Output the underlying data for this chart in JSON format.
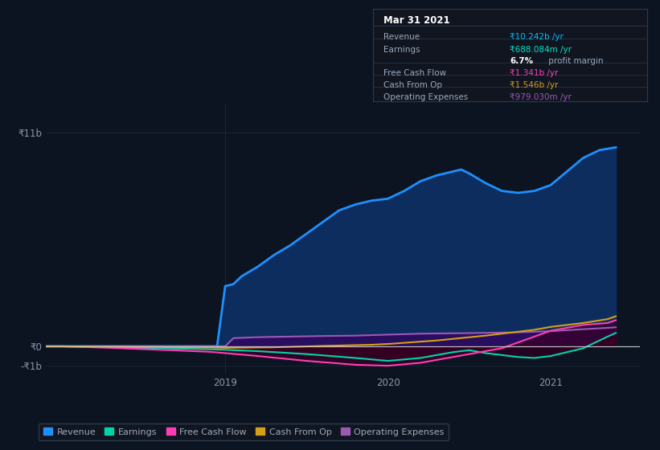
{
  "background_color": "#0d1421",
  "plot_bg_color": "#0d1421",
  "grid_color": "#1a2535",
  "ylim": [
    -1400000000.0,
    12500000000.0
  ],
  "xlim": [
    2017.9,
    2021.55
  ],
  "y_ticks": [
    -1000000000.0,
    0,
    11000000000.0
  ],
  "y_tick_labels": [
    "-₹1b",
    "₹0",
    "₹11b"
  ],
  "x_ticks": [
    2019.0,
    2020.0,
    2021.0
  ],
  "x_tick_labels": [
    "2019",
    "2020",
    "2021"
  ],
  "info_box_title": "Mar 31 2021",
  "info_rows": [
    {
      "label": "Revenue",
      "value": "₹10.242b /yr",
      "vcolor": "#00bfff",
      "separator": true
    },
    {
      "label": "Earnings",
      "value": "₹688.084m /yr",
      "vcolor": "#00e5cc",
      "separator": false
    },
    {
      "label": "",
      "value": "6.7% profit margin",
      "vcolor": "mixed",
      "separator": true
    },
    {
      "label": "Free Cash Flow",
      "value": "₹1.341b /yr",
      "vcolor": "#ff3eb5",
      "separator": true
    },
    {
      "label": "Cash From Op",
      "value": "₹1.546b /yr",
      "vcolor": "#d4a017",
      "separator": true
    },
    {
      "label": "Operating Expenses",
      "value": "₹979.030m /yr",
      "vcolor": "#9b59b6",
      "separator": false
    }
  ],
  "series": {
    "revenue": {
      "color": "#1e90ff",
      "fill_color": "#0d2d5e",
      "label": "Revenue",
      "x": [
        2017.9,
        2018.0,
        2018.1,
        2018.2,
        2018.3,
        2018.4,
        2018.5,
        2018.6,
        2018.7,
        2018.8,
        2018.9,
        2018.95,
        2019.0,
        2019.05,
        2019.1,
        2019.2,
        2019.3,
        2019.4,
        2019.5,
        2019.6,
        2019.7,
        2019.8,
        2019.9,
        2020.0,
        2020.1,
        2020.2,
        2020.3,
        2020.4,
        2020.45,
        2020.5,
        2020.6,
        2020.7,
        2020.8,
        2020.9,
        2021.0,
        2021.1,
        2021.2,
        2021.3,
        2021.4
      ],
      "y": [
        0,
        0,
        0,
        0,
        0,
        0,
        0,
        0,
        0,
        0,
        0,
        0,
        3100000000.0,
        3200000000.0,
        3600000000.0,
        4100000000.0,
        4700000000.0,
        5200000000.0,
        5800000000.0,
        6400000000.0,
        7000000000.0,
        7300000000.0,
        7500000000.0,
        7600000000.0,
        8000000000.0,
        8500000000.0,
        8800000000.0,
        9000000000.0,
        9100000000.0,
        8900000000.0,
        8400000000.0,
        8000000000.0,
        7900000000.0,
        8000000000.0,
        8300000000.0,
        9000000000.0,
        9700000000.0,
        10100000000.0,
        10242000000.0
      ]
    },
    "earnings": {
      "color": "#00d4aa",
      "label": "Earnings",
      "x": [
        2017.9,
        2018.0,
        2018.3,
        2018.6,
        2018.9,
        2019.0,
        2019.2,
        2019.5,
        2019.8,
        2020.0,
        2020.2,
        2020.4,
        2020.5,
        2020.6,
        2020.8,
        2020.9,
        2021.0,
        2021.2,
        2021.35,
        2021.4
      ],
      "y": [
        0,
        0,
        -50000000.0,
        -100000000.0,
        -150000000.0,
        -180000000.0,
        -250000000.0,
        -400000000.0,
        -600000000.0,
        -750000000.0,
        -600000000.0,
        -300000000.0,
        -200000000.0,
        -350000000.0,
        -550000000.0,
        -600000000.0,
        -500000000.0,
        -100000000.0,
        500000000.0,
        688000000.0
      ]
    },
    "free_cash_flow": {
      "color": "#ff3eb5",
      "label": "Free Cash Flow",
      "x": [
        2017.9,
        2018.0,
        2018.3,
        2018.6,
        2018.9,
        2019.0,
        2019.2,
        2019.5,
        2019.8,
        2020.0,
        2020.2,
        2020.5,
        2020.7,
        2020.9,
        2021.0,
        2021.2,
        2021.35,
        2021.4
      ],
      "y": [
        0,
        0,
        -80000000.0,
        -180000000.0,
        -280000000.0,
        -350000000.0,
        -500000000.0,
        -750000000.0,
        -950000000.0,
        -1000000000.0,
        -850000000.0,
        -400000000.0,
        -100000000.0,
        500000000.0,
        800000000.0,
        1100000000.0,
        1200000000.0,
        1341000000.0
      ]
    },
    "cash_from_op": {
      "color": "#d4a017",
      "label": "Cash From Op",
      "x": [
        2017.9,
        2018.0,
        2018.5,
        2018.9,
        2019.0,
        2019.3,
        2019.6,
        2019.9,
        2020.0,
        2020.3,
        2020.6,
        2020.9,
        2021.0,
        2021.2,
        2021.35,
        2021.4
      ],
      "y": [
        0,
        0,
        -30000000.0,
        -60000000.0,
        -80000000.0,
        -50000000.0,
        20000000.0,
        80000000.0,
        120000000.0,
        300000000.0,
        550000000.0,
        850000000.0,
        1000000000.0,
        1200000000.0,
        1400000000.0,
        1546000000.0
      ]
    },
    "operating_expenses": {
      "color": "#9b59b6",
      "fill_color": "#2d0a5e",
      "label": "Operating Expenses",
      "x": [
        2017.9,
        2018.0,
        2018.5,
        2018.9,
        2018.95,
        2019.0,
        2019.05,
        2019.2,
        2019.4,
        2019.6,
        2019.8,
        2020.0,
        2020.2,
        2020.5,
        2020.8,
        2021.0,
        2021.2,
        2021.35,
        2021.4
      ],
      "y": [
        0,
        0,
        0,
        0,
        0,
        0,
        420000000.0,
        470000000.0,
        500000000.0,
        530000000.0,
        550000000.0,
        600000000.0,
        650000000.0,
        680000000.0,
        720000000.0,
        780000000.0,
        880000000.0,
        950000000.0,
        979000000.0
      ]
    }
  },
  "legend": [
    {
      "label": "Revenue",
      "color": "#1e90ff"
    },
    {
      "label": "Earnings",
      "color": "#00d4aa"
    },
    {
      "label": "Free Cash Flow",
      "color": "#ff3eb5"
    },
    {
      "label": "Cash From Op",
      "color": "#d4a017"
    },
    {
      "label": "Operating Expenses",
      "color": "#9b59b6"
    }
  ]
}
